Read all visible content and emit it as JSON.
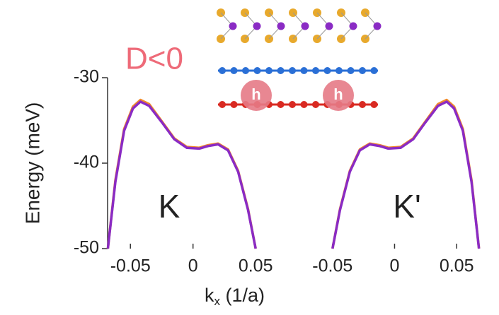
{
  "figure": {
    "annotation": "D<0",
    "y_label": "Energy (meV)",
    "x_label_main": "k",
    "x_label_sub": "x",
    "x_label_rest": " (1/a)",
    "hole_label": "h"
  },
  "chart_data": [
    {
      "type": "line",
      "annotation": "K",
      "xlim": [
        -0.075,
        0.055
      ],
      "xticks": [
        -0.05,
        0,
        0.05
      ],
      "ylim": [
        -50,
        -30
      ],
      "yticks": [
        -50,
        -40,
        -30
      ],
      "series": [
        {
          "color": "#f08a2c",
          "x": [
            -0.068,
            -0.062,
            -0.055,
            -0.048,
            -0.042,
            -0.035,
            -0.025,
            -0.015,
            -0.005,
            0.005,
            0.012,
            0.02,
            0.028,
            0.036,
            0.044,
            0.05
          ],
          "values": [
            -50,
            -42,
            -36,
            -33.4,
            -32.6,
            -33.1,
            -35.1,
            -37.1,
            -38.1,
            -38.2,
            -37.9,
            -37.7,
            -38.4,
            -40.9,
            -45.4,
            -50
          ]
        },
        {
          "color": "#8a2bc4",
          "x": [
            -0.068,
            -0.062,
            -0.055,
            -0.048,
            -0.042,
            -0.035,
            -0.025,
            -0.015,
            -0.005,
            0.005,
            0.012,
            0.02,
            0.028,
            0.036,
            0.044,
            0.05
          ],
          "values": [
            -50,
            -42.2,
            -36.2,
            -33.6,
            -32.8,
            -33.3,
            -35.2,
            -37.2,
            -38.2,
            -38.3,
            -38,
            -37.8,
            -38.5,
            -41,
            -45.5,
            -50
          ]
        }
      ]
    },
    {
      "type": "line",
      "annotation": "K'",
      "xlim": [
        -0.055,
        0.075
      ],
      "xticks": [
        -0.05,
        0,
        0.05
      ],
      "ylim": [
        -50,
        -30
      ],
      "series": [
        {
          "color": "#f08a2c",
          "x": [
            -0.05,
            -0.044,
            -0.036,
            -0.028,
            -0.02,
            -0.012,
            -0.005,
            0.005,
            0.015,
            0.025,
            0.035,
            0.042,
            0.048,
            0.055,
            0.062,
            0.068
          ],
          "values": [
            -50,
            -45.4,
            -40.9,
            -38.4,
            -37.7,
            -37.9,
            -38.2,
            -38.1,
            -37.1,
            -35.1,
            -33.1,
            -32.6,
            -33.4,
            -36,
            -42,
            -50
          ]
        },
        {
          "color": "#8a2bc4",
          "x": [
            -0.05,
            -0.044,
            -0.036,
            -0.028,
            -0.02,
            -0.012,
            -0.005,
            0.005,
            0.015,
            0.025,
            0.035,
            0.042,
            0.048,
            0.055,
            0.062,
            0.068
          ],
          "values": [
            -50,
            -45.5,
            -41,
            -38.5,
            -37.8,
            -38,
            -38.3,
            -38.2,
            -37.2,
            -35.2,
            -33.3,
            -32.8,
            -33.6,
            -36.2,
            -42.2,
            -50
          ]
        }
      ]
    }
  ]
}
